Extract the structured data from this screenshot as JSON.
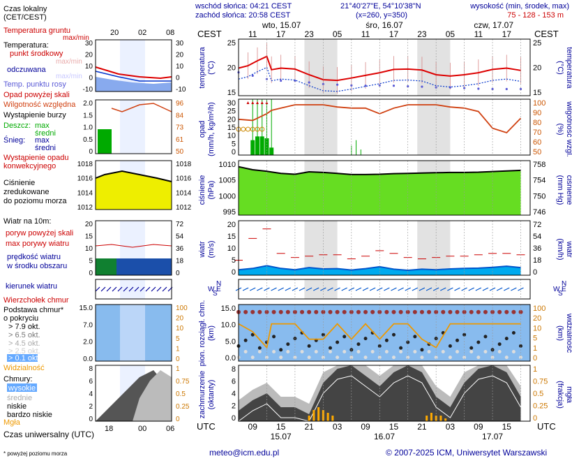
{
  "header": {
    "sunrise": "wschód słońca: 04:21 CEST",
    "sunset": "zachód słońca: 20:58 CEST",
    "coords": "21°40'27\"E, 54°10'38\"N",
    "grid": "(x=260, y=350)",
    "alt_title": "wysokość (min, środek, max)",
    "alt_values": "75 - 128 - 153 m"
  },
  "legend": {
    "local_time_1": "Czas lokalny",
    "local_time_2": "(CET/CEST)",
    "ground_temp": "Temperatura gruntu",
    "max_min": "max/min",
    "temperature": "Temperatura:",
    "mid_point": "punkt środkowy",
    "max_min_2": "max/min",
    "felt": "odczuwana",
    "dew_point": "Temp. punktu rosy",
    "precip_over": "Opad powyżej skali",
    "humidity": "Wilgotność względna",
    "storm": "Wystąpienie burzy",
    "rain": "Deszcz:",
    "rain_max": "max",
    "rain_avg": "średni",
    "snow": "Śnieg:",
    "snow_max": "max",
    "snow_avg": "średni",
    "conv_1": "Wystąpienie opadu",
    "conv_2": "konwekcyjnego",
    "pressure_1": "Ciśnienie",
    "pressure_2": "zredukowane",
    "pressure_3": "do poziomu morza",
    "wind_title": "Wiatr na 10m:",
    "gust_over": "poryw powyżej skali",
    "gust_max": "max porywy wiatru",
    "wind_speed_1": "prędkość wiatru",
    "wind_speed_2": "w środku obszaru",
    "wind_dir": "kierunek wiatru",
    "cloud_top": "Wierzchołek chmur",
    "cloud_base_1": "Podstawa chmur*",
    "cloud_base_2": "o pokryciu",
    "okt_79": "> 7.9 okt.",
    "okt_65": "> 6.5 okt.",
    "okt_45": "> 4.5 okt.",
    "okt_25": "> 2.5 okt.",
    "okt_01": "> 0.1 okt.",
    "visibility": "Widzialność",
    "clouds": "Chmury:",
    "high": "wysokie",
    "mid": "średnie",
    "low": "niskie",
    "very_low": "bardzo niskie",
    "fog": "Mgła",
    "utc_label": "Czas uniwersalny (UTC)",
    "footnote": "* powyżej poziomu morza"
  },
  "time_axis": {
    "cest": "CEST",
    "utc": "UTC",
    "days_top": [
      "wto, 15.07",
      "śro, 16.07",
      "czw, 17.07"
    ],
    "hours_top": [
      "11",
      "17",
      "23",
      "05",
      "11",
      "17",
      "23",
      "05",
      "11",
      "17"
    ],
    "hours_bottom": [
      "09",
      "15",
      "21",
      "03",
      "09",
      "15",
      "21",
      "03",
      "09",
      "15"
    ],
    "dates_bottom": [
      "15.07",
      "16.07",
      "17.07"
    ],
    "legend_hours_top": [
      "20",
      "02",
      "08"
    ],
    "legend_hours_bottom": [
      "18",
      "00",
      "06"
    ]
  },
  "panel_labels": {
    "temp_1": "temperatura",
    "temp_2": "(°C)",
    "precip_1": "opad",
    "precip_2": "(mm/h, kg/m²/h)",
    "hum_1": "(%)",
    "hum_2": "wilgotność wzgl.",
    "pres_1": "ciśnienie",
    "pres_2": "(hPa)",
    "pres_3": "(mm Hg)",
    "pres_4": "ciśnienie",
    "wind_1": "wiatr",
    "wind_2": "(m/s)",
    "wind_3": "(km/h)",
    "wind_4": "wiatr",
    "cb_1": "pion. rozciągł. chm.",
    "cb_2": "(km)",
    "vis_1": "(km)",
    "vis_2": "widzialność",
    "cl_1": "zachmurzenie",
    "cl_2": "(oktanty)",
    "fog_1": "(frakcja)",
    "fog_2": "mgła"
  },
  "axes": {
    "temp_left": [
      "25",
      "20",
      "15"
    ],
    "temp_right": [
      "25",
      "20",
      "15"
    ],
    "precip_left": [
      "30",
      "25",
      "20",
      "15",
      "10",
      "5",
      "0"
    ],
    "hum_right": [
      "100",
      "90",
      "80",
      "70",
      "60",
      "50"
    ],
    "pres_left": [
      "1010",
      "1005",
      "1000",
      "995"
    ],
    "pres_right": [
      "758",
      "754",
      "750",
      "746"
    ],
    "wind_left": [
      "20",
      "15",
      "10",
      "5",
      "0"
    ],
    "wind_right": [
      "72",
      "54",
      "36",
      "18",
      "0"
    ],
    "cb_left": [
      "15.0",
      "10.0",
      "5.0",
      "0.0"
    ],
    "vis_right": [
      "100",
      "20",
      "10",
      "5",
      "1",
      "0"
    ],
    "cl_left": [
      "8",
      "6",
      "4",
      "2",
      "0"
    ],
    "fog_right": [
      "1",
      "0.75",
      "0.5",
      "0.25",
      "0"
    ],
    "leg_temp_left": [
      "30",
      "20",
      "10",
      "0",
      "-10"
    ],
    "leg_temp_right": [
      "30",
      "20",
      "10",
      "0",
      "-10"
    ],
    "leg_prec_left": [
      "2.0",
      "1.5",
      "1.0",
      "0.5",
      "0"
    ],
    "leg_hum_right": [
      "96",
      "84",
      "73",
      "61",
      "50"
    ],
    "leg_pres_left": [
      "1018",
      "1016",
      "1014",
      "1012"
    ],
    "leg_pres_right": [
      "1018",
      "1016",
      "1014",
      "1012"
    ],
    "leg_wind_left": [
      "20",
      "15",
      "10",
      "5",
      "0"
    ],
    "leg_wind_right": [
      "72",
      "54",
      "36",
      "18",
      "0"
    ],
    "leg_cb_left": [
      "15.0",
      "7.0",
      "2.0",
      "0.0"
    ],
    "leg_vis_right": [
      "100",
      "20",
      "10",
      "5",
      "1",
      "0"
    ],
    "leg_cl_left": [
      "8",
      "6",
      "4",
      "2",
      "0"
    ],
    "leg_fog_right": [
      "1",
      "0.75",
      "0.5",
      "0.25",
      "0"
    ]
  },
  "wind_dir_labels": {
    "n": "N",
    "w": "W",
    "e": "E",
    "s": "S"
  },
  "footer": {
    "email": "meteo@icm.edu.pl",
    "copyright": "© 2007-2025 ICM, Uniwersytet Warszawski"
  },
  "colors": {
    "temp": "#dd0000",
    "dew": "#5a5ad6",
    "humidity": "#d04010",
    "pressure_fill": "#66dd22",
    "wind": "#0055cc",
    "visibility": "#ee9900",
    "fog": "#ffaa00",
    "night_shade": "#e2e2e2",
    "label_blue": "#000099",
    "label_red": "#cc0000"
  },
  "chart_data": {
    "type": "line",
    "x_unit": "hours UTC from 2025-07-15 00:00",
    "temperature": {
      "x": [
        6,
        8,
        10,
        12,
        13,
        15,
        18,
        21,
        24,
        27,
        30,
        33,
        36,
        39,
        42,
        45,
        48,
        51,
        54,
        57,
        60,
        63,
        66
      ],
      "values": [
        19.8,
        20.5,
        22,
        23.3,
        19.3,
        19.8,
        19.5,
        17.8,
        16.3,
        16.1,
        16.8,
        17.6,
        18.4,
        19.4,
        19.5,
        19.2,
        17.8,
        17.4,
        17.8,
        18.4,
        19.4,
        19.8,
        19.1
      ]
    },
    "dew_point": {
      "x": [
        6,
        9,
        12,
        15,
        18,
        21,
        24,
        27,
        30,
        33,
        36,
        39,
        42,
        45,
        48,
        51,
        54,
        57,
        60,
        63,
        66
      ],
      "values": [
        18.5,
        17.5,
        16.5,
        16.0,
        16.0,
        15.5,
        15.0,
        14.8,
        14.6,
        14.5,
        14.6,
        14.5,
        14.3,
        14.2,
        14.0,
        14.0,
        13.8,
        13.6,
        13.5,
        13.5,
        13.5
      ]
    },
    "humidity": {
      "x": [
        6,
        9,
        12,
        13,
        15,
        18,
        21,
        24,
        27,
        30,
        33,
        36,
        39,
        42,
        45,
        48,
        51,
        54,
        57,
        60,
        63,
        66
      ],
      "values": [
        82,
        81,
        87,
        90,
        92,
        95,
        95,
        95,
        93,
        92,
        92,
        87,
        92,
        95,
        95,
        95,
        93,
        92,
        89,
        74,
        70,
        83
      ]
    },
    "precip_max": {
      "x": [
        9,
        10,
        11,
        12,
        13,
        30,
        31,
        32
      ],
      "values": [
        30,
        30,
        30,
        30,
        30,
        5,
        8,
        3
      ]
    },
    "precip_avg": {
      "x": [
        9,
        10,
        11,
        12,
        13
      ],
      "values": [
        8,
        10,
        10,
        9,
        4
      ]
    },
    "pressure": {
      "x": [
        6,
        9,
        12,
        15,
        18,
        21,
        24,
        27,
        30,
        33,
        36,
        39,
        42,
        45,
        48,
        51,
        54,
        57,
        60,
        63,
        66
      ],
      "values": [
        1011,
        1010,
        1009.5,
        1008.8,
        1008.5,
        1009.3,
        1009.1,
        1008.8,
        1008.4,
        1008.4,
        1008.5,
        1008.7,
        1008.8,
        1008.9,
        1009.0,
        1009.1,
        1009.1,
        1009.2,
        1009.4,
        1009.6,
        1009.8
      ]
    },
    "wind_speed": {
      "x": [
        6,
        9,
        12,
        15,
        18,
        21,
        24,
        27,
        30,
        33,
        36,
        39,
        42,
        45,
        48,
        51,
        54,
        57,
        60,
        63,
        66
      ],
      "values": [
        2.0,
        2.5,
        3.5,
        2.5,
        2.0,
        2.8,
        2.3,
        2.4,
        1.9,
        2.4,
        3.1,
        2.2,
        1.8,
        2.2,
        2.0,
        2.3,
        2.5,
        2.6,
        2.9,
        3.3,
        2.8
      ]
    },
    "wind_gust": {
      "x": [
        6,
        9,
        12,
        15,
        18,
        21,
        24,
        27,
        30,
        33,
        36,
        39,
        42,
        45,
        48,
        51,
        54,
        57,
        60,
        63,
        66
      ],
      "values": [
        5.5,
        13.5,
        17,
        8,
        6.5,
        7,
        7.5,
        7.5,
        6,
        7,
        9,
        8,
        6.5,
        6,
        6.5,
        7,
        7,
        7.5,
        8,
        8,
        7.5
      ]
    },
    "visibility": {
      "x": [
        6,
        9,
        12,
        13,
        15,
        18,
        21,
        24,
        27,
        30,
        33,
        36,
        39,
        42,
        45,
        48,
        51,
        54,
        57,
        60,
        63,
        66
      ],
      "values": [
        20,
        10,
        2,
        20,
        20,
        20,
        5,
        5,
        20,
        5,
        20,
        5,
        20,
        20,
        5,
        2,
        20,
        20,
        20,
        20,
        20,
        20
      ]
    },
    "cloud_low": {
      "x": [
        6,
        9,
        12,
        15,
        18,
        21,
        24,
        27,
        30,
        33,
        36,
        39,
        42,
        45,
        48,
        51,
        54,
        57,
        60,
        63,
        66
      ],
      "values": [
        1.5,
        3,
        4,
        2,
        2,
        1,
        5.5,
        7.5,
        8,
        6.5,
        5,
        7,
        8,
        7,
        3.5,
        2,
        5.5,
        7.5,
        8,
        7,
        3.5
      ]
    },
    "fog_fraction": {
      "x": [
        21,
        22,
        23,
        24,
        25,
        26,
        46,
        47,
        48,
        49,
        50
      ],
      "values": [
        0.1,
        0.2,
        0.25,
        0.2,
        0.15,
        0.1,
        0.1,
        0.15,
        0.1,
        0.1,
        0.05
      ]
    }
  }
}
